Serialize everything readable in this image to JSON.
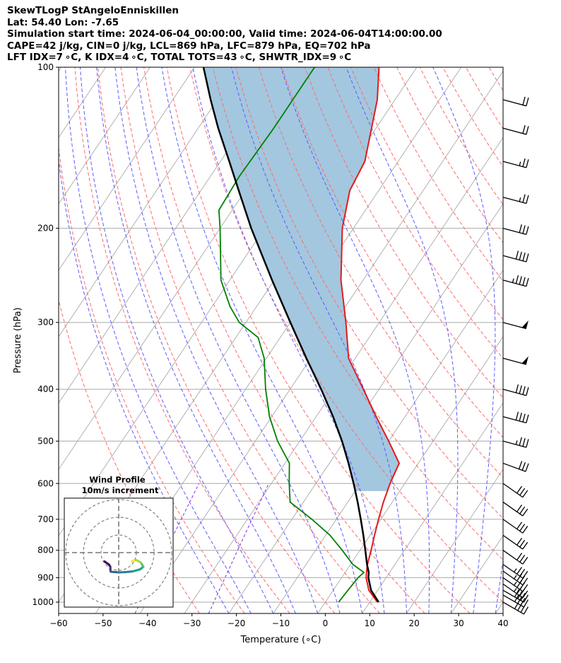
{
  "header": {
    "line1": "SkewTLogP StAngeloEnniskillen",
    "line2": "Lat: 54.40   Lon: -7.65",
    "line3": "Simulation start time: 2024-06-04_00:00:00, Valid time: 2024-06-04T14:00:00.00",
    "line4": "CAPE=42 j/kg, CIN=0 j/kg, LCL=869 hPa, LFC=879 hPa, EQ=702 hPa",
    "line5": "LFT IDX=7 ∘C, K IDX=4 ∘C, TOTAL TOTS=43 ∘C, SHWTR_IDX=9 ∘C"
  },
  "chart_data": {
    "type": "skewt-logp",
    "xlabel": "Temperature (∘C)",
    "ylabel": "Pressure (hPa)",
    "x_ticks": [
      "−60",
      "−50",
      "−40",
      "−30",
      "−20",
      "−10",
      "0",
      "10",
      "20",
      "30",
      "40"
    ],
    "x_tick_values": [
      -60,
      -50,
      -40,
      -30,
      -20,
      -10,
      0,
      10,
      20,
      30,
      40
    ],
    "y_ticks": [
      "100",
      "200",
      "300",
      "400",
      "500",
      "600",
      "700",
      "800",
      "900",
      "1000"
    ],
    "y_tick_values": [
      100,
      200,
      300,
      400,
      500,
      600,
      700,
      800,
      900,
      1000
    ],
    "xlim": [
      -60,
      40
    ],
    "ylim": [
      1050,
      100
    ],
    "skew": 35,
    "temperature_profile": [
      [
        1000,
        11.7
      ],
      [
        950,
        8.0
      ],
      [
        900,
        5.5
      ],
      [
        880,
        4.8
      ],
      [
        850,
        3.8
      ],
      [
        800,
        2.5
      ],
      [
        750,
        1.0
      ],
      [
        700,
        -0.5
      ],
      [
        650,
        -2.0
      ],
      [
        600,
        -3.3
      ],
      [
        550,
        -4.3
      ],
      [
        500,
        -10.0
      ],
      [
        450,
        -16.5
      ],
      [
        400,
        -23.5
      ],
      [
        350,
        -31.5
      ],
      [
        300,
        -37.5
      ],
      [
        250,
        -45.0
      ],
      [
        200,
        -52.5
      ],
      [
        170,
        -56.5
      ],
      [
        150,
        -57.5
      ],
      [
        130,
        -61.0
      ],
      [
        115,
        -64.0
      ],
      [
        100,
        -68.5
      ]
    ],
    "dewpoint_profile": [
      [
        1000,
        3.0
      ],
      [
        950,
        3.3
      ],
      [
        900,
        3.7
      ],
      [
        880,
        4.2
      ],
      [
        850,
        0.5
      ],
      [
        800,
        -4.0
      ],
      [
        750,
        -9.0
      ],
      [
        700,
        -15.5
      ],
      [
        650,
        -23.0
      ],
      [
        600,
        -26.0
      ],
      [
        550,
        -29.0
      ],
      [
        500,
        -35.0
      ],
      [
        450,
        -40.5
      ],
      [
        400,
        -45.5
      ],
      [
        350,
        -50.5
      ],
      [
        320,
        -55.0
      ],
      [
        300,
        -61.5
      ],
      [
        280,
        -66.0
      ],
      [
        250,
        -72.0
      ],
      [
        200,
        -80.0
      ],
      [
        185,
        -83.0
      ],
      [
        160,
        -83.5
      ],
      [
        130,
        -83.0
      ],
      [
        100,
        -83.0
      ]
    ],
    "parcel_profile": [
      [
        1000,
        12.0
      ],
      [
        950,
        8.5
      ],
      [
        900,
        6.0
      ],
      [
        880,
        5.3
      ],
      [
        850,
        3.7
      ],
      [
        800,
        1.2
      ],
      [
        750,
        -1.5
      ],
      [
        700,
        -4.5
      ],
      [
        650,
        -7.8
      ],
      [
        600,
        -11.5
      ],
      [
        550,
        -15.7
      ],
      [
        500,
        -20.5
      ],
      [
        450,
        -26.2
      ],
      [
        400,
        -33.0
      ],
      [
        350,
        -41.0
      ],
      [
        300,
        -50.0
      ],
      [
        250,
        -60.5
      ],
      [
        200,
        -73.0
      ],
      [
        170,
        -81.5
      ],
      [
        150,
        -88.0
      ],
      [
        130,
        -95.5
      ],
      [
        115,
        -101.5
      ],
      [
        100,
        -108.0
      ]
    ],
    "wind_barbs": [
      {
        "p": 1000,
        "speed_kt": 40,
        "dir_deg": 300
      },
      {
        "p": 970,
        "speed_kt": 40,
        "dir_deg": 300
      },
      {
        "p": 950,
        "speed_kt": 40,
        "dir_deg": 300
      },
      {
        "p": 925,
        "speed_kt": 35,
        "dir_deg": 305
      },
      {
        "p": 900,
        "speed_kt": 35,
        "dir_deg": 305
      },
      {
        "p": 875,
        "speed_kt": 35,
        "dir_deg": 305
      },
      {
        "p": 850,
        "speed_kt": 35,
        "dir_deg": 305
      },
      {
        "p": 800,
        "speed_kt": 30,
        "dir_deg": 305
      },
      {
        "p": 750,
        "speed_kt": 30,
        "dir_deg": 305
      },
      {
        "p": 700,
        "speed_kt": 30,
        "dir_deg": 305
      },
      {
        "p": 650,
        "speed_kt": 30,
        "dir_deg": 305
      },
      {
        "p": 600,
        "speed_kt": 30,
        "dir_deg": 305
      },
      {
        "p": 550,
        "speed_kt": 30,
        "dir_deg": 290
      },
      {
        "p": 500,
        "speed_kt": 35,
        "dir_deg": 285
      },
      {
        "p": 450,
        "speed_kt": 40,
        "dir_deg": 285
      },
      {
        "p": 400,
        "speed_kt": 40,
        "dir_deg": 285
      },
      {
        "p": 350,
        "speed_kt": 50,
        "dir_deg": 285
      },
      {
        "p": 300,
        "speed_kt": 50,
        "dir_deg": 285
      },
      {
        "p": 250,
        "speed_kt": 45,
        "dir_deg": 285
      },
      {
        "p": 225,
        "speed_kt": 40,
        "dir_deg": 285
      },
      {
        "p": 200,
        "speed_kt": 30,
        "dir_deg": 285
      },
      {
        "p": 175,
        "speed_kt": 25,
        "dir_deg": 285
      },
      {
        "p": 150,
        "speed_kt": 25,
        "dir_deg": 285
      },
      {
        "p": 130,
        "speed_kt": 20,
        "dir_deg": 285
      },
      {
        "p": 115,
        "speed_kt": 20,
        "dir_deg": 285
      }
    ],
    "inset": {
      "title_line1": "Wind Profile",
      "title_line2": "10m/s increment",
      "rings_ms": [
        10,
        20,
        30
      ],
      "hodograph_uv": [
        [
          -8.0,
          -5.0
        ],
        [
          -5.5,
          -6.8
        ],
        [
          -4.7,
          -8.0
        ],
        [
          -4.8,
          -9.3
        ],
        [
          -4.5,
          -10.8
        ],
        [
          0.0,
          -11.2
        ],
        [
          4.0,
          -11.0
        ],
        [
          8.0,
          -10.6
        ],
        [
          12.0,
          -9.5
        ],
        [
          14.0,
          -8.0
        ],
        [
          12.5,
          -5.6
        ],
        [
          10.0,
          -4.2
        ],
        [
          8.5,
          -4.4
        ],
        [
          7.5,
          -5.0
        ]
      ]
    },
    "colors": {
      "temperature": "#e31a1c",
      "dewpoint": "#008000",
      "parcel": "#000000",
      "cape_fill": "#a3c7df",
      "isotherm": "#aaaaaa",
      "dry_adiabat": "#ff6b6b",
      "moist_adiabat": "#5b5bff",
      "mixing_ratio": "#8a2be2"
    }
  }
}
